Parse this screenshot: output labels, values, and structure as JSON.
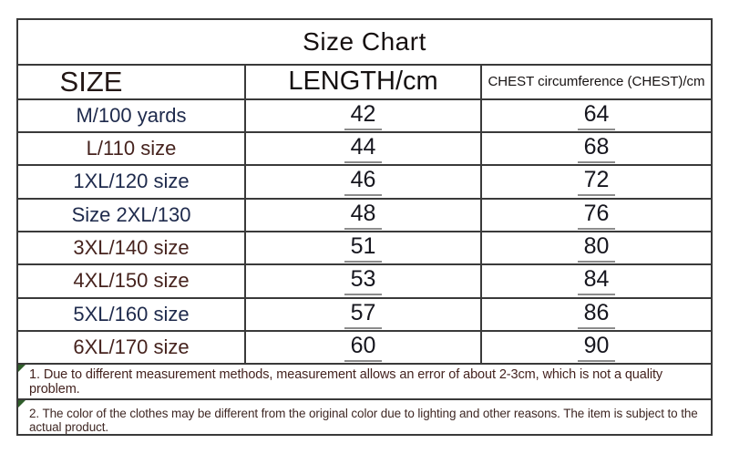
{
  "title": "Size Chart",
  "colors": {
    "navy": "#1e2a4c",
    "maroon": "#46231e",
    "border": "#3a3a3a",
    "number_text": "#16161e",
    "number_underline": "#8c8c8c",
    "note_text_1": "#44231f",
    "note_text_2": "#3f2824",
    "corner_marker_green": "#2f5e2a"
  },
  "chart_data": {
    "type": "table",
    "title": "Size Chart",
    "columns": [
      "SIZE",
      "LENGTH/cm",
      "CHEST circumference (CHEST)/cm"
    ],
    "rows": [
      {
        "size": "M/100 yards",
        "length_cm": 42,
        "chest_cm": 64,
        "label_color": "navy"
      },
      {
        "size": "L/110 size",
        "length_cm": 44,
        "chest_cm": 68,
        "label_color": "maroon"
      },
      {
        "size": "1XL/120 size",
        "length_cm": 46,
        "chest_cm": 72,
        "label_color": "navy"
      },
      {
        "size": "Size 2XL/130",
        "length_cm": 48,
        "chest_cm": 76,
        "label_color": "navy"
      },
      {
        "size": "3XL/140 size",
        "length_cm": 51,
        "chest_cm": 80,
        "label_color": "maroon"
      },
      {
        "size": "4XL/150 size",
        "length_cm": 53,
        "chest_cm": 84,
        "label_color": "maroon"
      },
      {
        "size": "5XL/160 size",
        "length_cm": 57,
        "chest_cm": 86,
        "label_color": "navy"
      },
      {
        "size": "6XL/170 size",
        "length_cm": 60,
        "chest_cm": 90,
        "label_color": "maroon"
      }
    ]
  },
  "notes": [
    {
      "text": "1. Due to different measurement methods, measurement allows an error of about 2-3cm, which is not a quality problem."
    },
    {
      "text": "2. The color of the clothes may be different from the original color due to lighting and other reasons. The item is subject to the actual product."
    }
  ]
}
